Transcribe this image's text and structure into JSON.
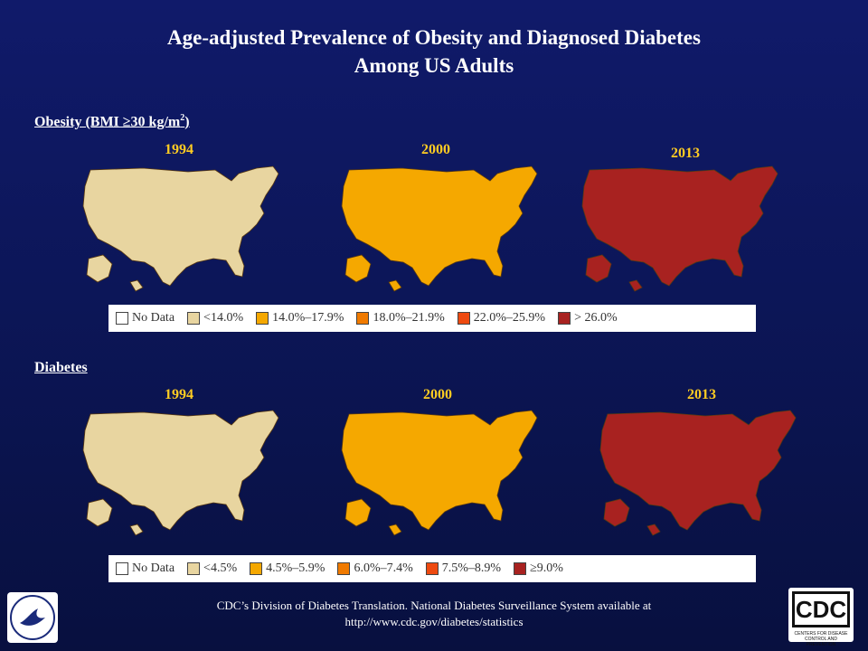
{
  "slide": {
    "title_line1": "Age-adjusted Prevalence of  Obesity and Diagnosed Diabetes",
    "title_line2": "Among US Adults",
    "obesity_label": "Obesity (BMI ≥30 kg/m",
    "obesity_label_sup": "2",
    "obesity_label_end": ")",
    "diabetes_label": "Diabetes",
    "footer_line1": "CDC’s Division of Diabetes Translation. National Diabetes Surveillance System available at",
    "footer_line2": "http://www.cdc.gov/diabetes/statistics",
    "cdc_logo_text": "CDC",
    "cdc_logo_sub": "CENTERS FOR DISEASE CONTROL AND PREVENTION"
  },
  "obesity": {
    "years": [
      "1994",
      "2000",
      "2013"
    ],
    "map_fills": [
      "#e8d5a0",
      "#f5a800",
      "#a82220"
    ],
    "legend": [
      {
        "label": "No Data",
        "color": "#ffffff"
      },
      {
        "label": "<14.0%",
        "color": "#e8d5a0"
      },
      {
        "label": "14.0%–17.9%",
        "color": "#f5a800"
      },
      {
        "label": "18.0%–21.9%",
        "color": "#f07a00"
      },
      {
        "label": "22.0%–25.9%",
        "color": "#ee4a10"
      },
      {
        "label": "> 26.0%",
        "color": "#a82220"
      }
    ]
  },
  "diabetes": {
    "years": [
      "1994",
      "2000",
      "2013"
    ],
    "map_fills": [
      "#e8d5a0",
      "#f5a800",
      "#a82220"
    ],
    "legend": [
      {
        "label": "No Data",
        "color": "#ffffff"
      },
      {
        "label": "<4.5%",
        "color": "#e8d5a0"
      },
      {
        "label": "4.5%–5.9%",
        "color": "#f5a800"
      },
      {
        "label": "6.0%–7.4%",
        "color": "#f07a00"
      },
      {
        "label": "7.5%–8.9%",
        "color": "#ee4a10"
      },
      {
        "label": "≥9.0%",
        "color": "#a82220"
      }
    ]
  }
}
